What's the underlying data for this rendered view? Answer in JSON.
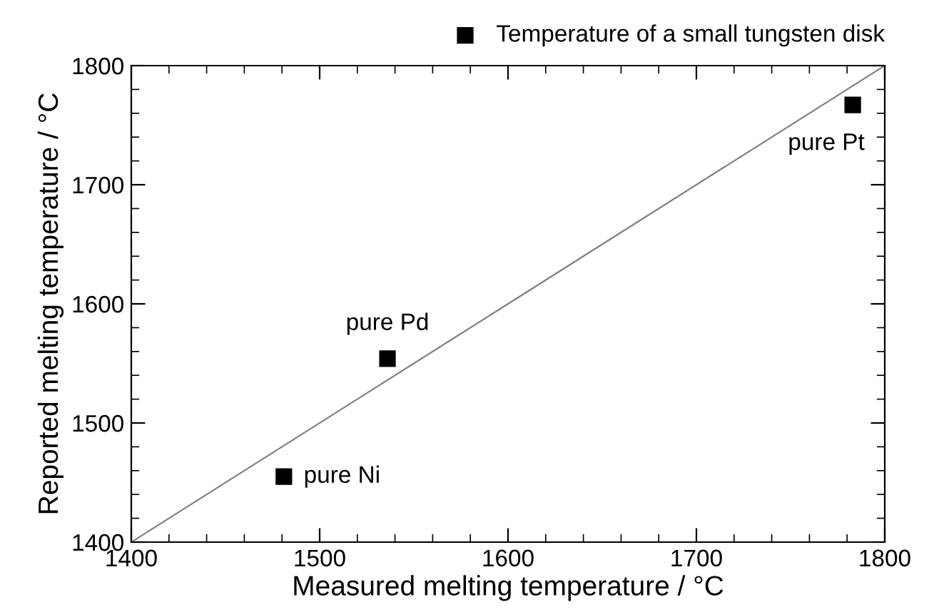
{
  "chart_data": {
    "type": "scatter",
    "xlabel": "Measured melting temperature / °C",
    "ylabel": "Reported melting temperature / °C",
    "x": [
      1481,
      1536,
      1783
    ],
    "series": [
      {
        "name": "Temperature of a small tungsten disk",
        "color": "#000000",
        "values": [
          1455,
          1554,
          1767
        ],
        "marker": "square"
      },
      {
        "type": "line",
        "color": "#808080",
        "x": [
          1400,
          1800
        ],
        "values": [
          1400,
          1800
        ]
      }
    ],
    "xlim": [
      1400,
      1800
    ],
    "ylim": [
      1400,
      1800
    ],
    "xticks": [
      1400,
      1500,
      1600,
      1700,
      1800
    ],
    "yticks": [
      1400,
      1500,
      1600,
      1700,
      1800
    ],
    "grid": false,
    "legend": "top right",
    "annotations": [
      {
        "text": "pure Ni",
        "x": 1481,
        "y": 1455
      },
      {
        "text": "pure Pd",
        "x": 1536,
        "y": 1554
      },
      {
        "text": "pure Pt",
        "x": 1783,
        "y": 1767
      }
    ]
  }
}
